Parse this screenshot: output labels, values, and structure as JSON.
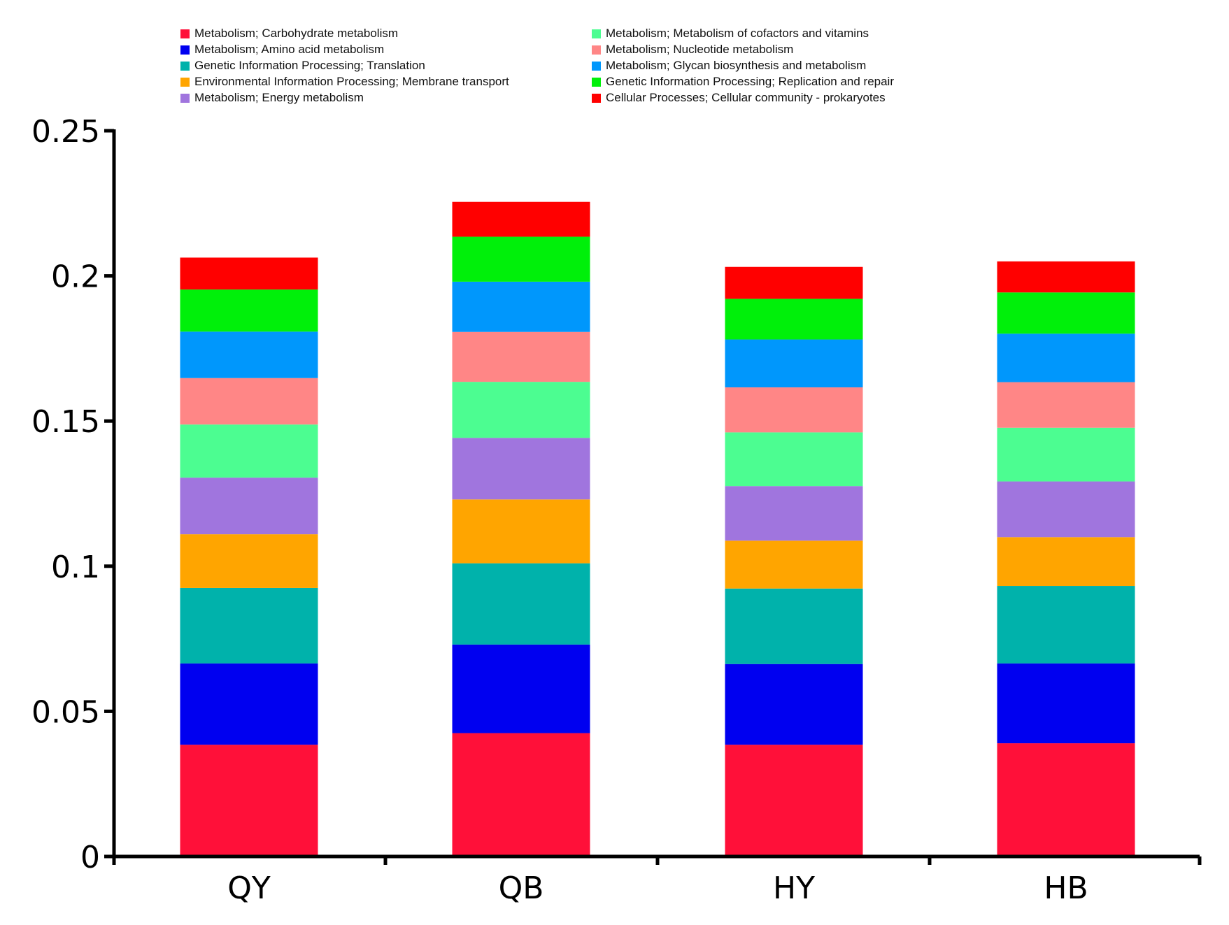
{
  "chart_data": {
    "type": "bar",
    "stacked": true,
    "title": "",
    "xlabel": "",
    "ylabel": "",
    "categories": [
      "QY",
      "QB",
      "HY",
      "HB"
    ],
    "ylim": [
      0,
      0.25
    ],
    "yticks": [
      0,
      0.05,
      0.1,
      0.15,
      0.2,
      0.25
    ],
    "ytick_labels": [
      "0",
      "0.05",
      "0.1",
      "0.15",
      "0.2",
      "0.25"
    ],
    "grid": false,
    "legend_position": "top",
    "series": [
      {
        "name": "Metabolism; Carbohydrate metabolism",
        "color": "#ff1039",
        "values": [
          0.0385,
          0.0425,
          0.0385,
          0.039
        ]
      },
      {
        "name": "Metabolism; Amino acid metabolism",
        "color": "#0000f0",
        "values": [
          0.028,
          0.0305,
          0.0278,
          0.0275
        ]
      },
      {
        "name": "Genetic Information Processing; Translation",
        "color": "#00b2ab",
        "values": [
          0.026,
          0.028,
          0.026,
          0.0267
        ]
      },
      {
        "name": "Environmental Information Processing; Membrane transport",
        "color": "#ffa500",
        "values": [
          0.0185,
          0.022,
          0.0165,
          0.0168
        ]
      },
      {
        "name": "Metabolism; Energy metabolism",
        "color": "#a075de",
        "values": [
          0.0195,
          0.0212,
          0.0188,
          0.0192
        ]
      },
      {
        "name": "Metabolism; Metabolism of cofactors and vitamins",
        "color": "#4cfd91",
        "values": [
          0.0183,
          0.0193,
          0.0185,
          0.0185
        ]
      },
      {
        "name": "Metabolism; Nucleotide metabolism",
        "color": "#ff8686",
        "values": [
          0.016,
          0.0172,
          0.0155,
          0.0157
        ]
      },
      {
        "name": "Metabolism; Glycan biosynthesis and metabolism",
        "color": "#0097fc",
        "values": [
          0.016,
          0.0173,
          0.0165,
          0.0167
        ]
      },
      {
        "name": "Genetic Information Processing; Replication and repair",
        "color": "#00f00a",
        "values": [
          0.0145,
          0.0155,
          0.014,
          0.0142
        ]
      },
      {
        "name": "Cellular Processes; Cellular community - prokaryotes",
        "color": "#ff0000",
        "values": [
          0.011,
          0.012,
          0.011,
          0.0107
        ]
      }
    ]
  }
}
